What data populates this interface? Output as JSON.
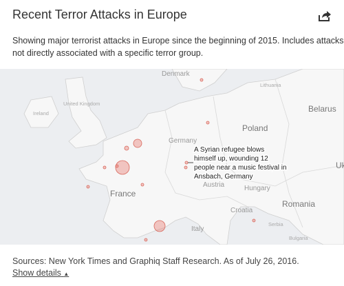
{
  "header": {
    "title": "Recent Terror Attacks in Europe",
    "description": [
      "Showing major terrorist attacks in Europe since the beginning of 2015. Includes attacks",
      "not directly associated with a specific terror group."
    ]
  },
  "map": {
    "labels": [
      "Denmark",
      "Lithuania",
      "Ireland",
      "United Kingdom",
      "Belarus",
      "Poland",
      "Germany",
      "France",
      "Austria",
      "Hungary",
      "Romania",
      "Croatia",
      "Serbia",
      "Bulgaria",
      "Italy",
      "Uk"
    ],
    "annotation": [
      "A Syrian refugee blows",
      "himself up, wounding 12",
      "people near a music festival in",
      "Ansbach, Germany"
    ]
  },
  "footer": {
    "source": "Sources: New York Times and Graphiq Staff Research. As of July 26, 2016.",
    "link": "Show details"
  }
}
